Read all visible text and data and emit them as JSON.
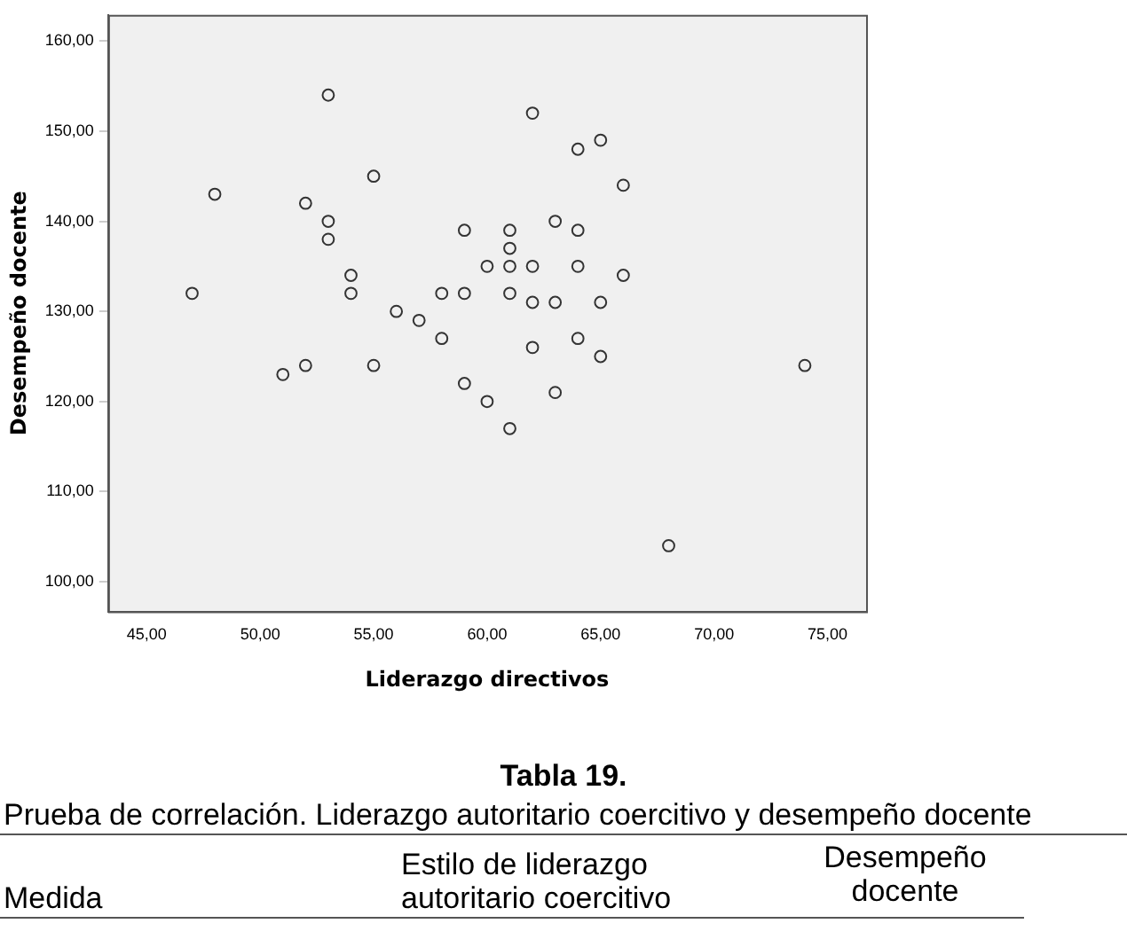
{
  "chart_data": {
    "type": "scatter",
    "xlabel": "Liderazgo directivos",
    "ylabel": "Desempeño docente",
    "x": [
      53,
      62,
      64,
      65,
      66,
      55,
      48,
      52,
      53,
      53,
      59,
      61,
      63,
      64,
      61,
      60,
      61,
      62,
      64,
      66,
      54,
      47,
      54,
      58,
      59,
      61,
      62,
      63,
      65,
      56,
      57,
      58,
      64,
      62,
      65,
      52,
      55,
      51,
      59,
      63,
      60,
      61,
      74,
      68
    ],
    "values": [
      154,
      152,
      148,
      149,
      144,
      145,
      143,
      142,
      140,
      138,
      139,
      139,
      140,
      139,
      137,
      135,
      135,
      135,
      135,
      134,
      134,
      132,
      132,
      132,
      132,
      132,
      131,
      131,
      131,
      130,
      129,
      127,
      127,
      126,
      125,
      124,
      124,
      123,
      122,
      121,
      120,
      117,
      124,
      104
    ],
    "color": "#333333",
    "marker": "circle",
    "grid": false,
    "legend": false,
    "xlim": [
      43.3,
      76.7
    ],
    "ylim": [
      96.7,
      162.9
    ],
    "xticks": [
      {
        "value": 45,
        "label": "45,00"
      },
      {
        "value": 50,
        "label": "50,00"
      },
      {
        "value": 55,
        "label": "55,00"
      },
      {
        "value": 60,
        "label": "60,00"
      },
      {
        "value": 65,
        "label": "65,00"
      },
      {
        "value": 70,
        "label": "70,00"
      },
      {
        "value": 75,
        "label": "75,00"
      }
    ],
    "yticks": [
      {
        "value": 100,
        "label": "100,00"
      },
      {
        "value": 110,
        "label": "110,00"
      },
      {
        "value": 120,
        "label": "120,00"
      },
      {
        "value": 130,
        "label": "130,00"
      },
      {
        "value": 140,
        "label": "140,00"
      },
      {
        "value": 150,
        "label": "150,00"
      },
      {
        "value": 160,
        "label": "160,00"
      }
    ],
    "annotations": [
      "Tabla 19.",
      "Prueba de correlación. Liderazgo autoritario coercitivo y desempeño docente",
      "Medida",
      "Estilo de liderazgo autoritario coercitivo",
      "Desempeño docente"
    ]
  }
}
